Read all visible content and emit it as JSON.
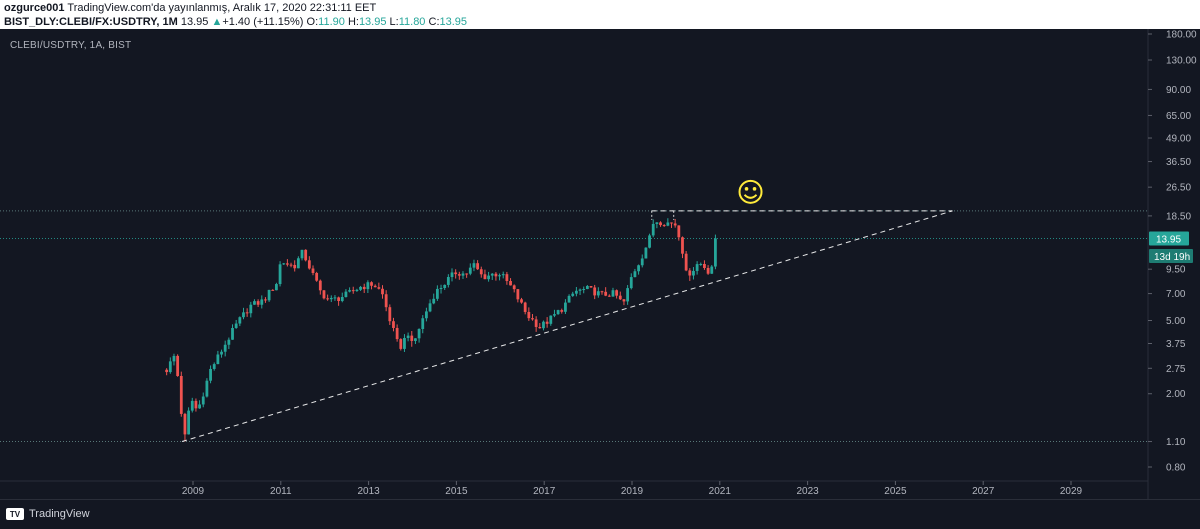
{
  "header": {
    "publisher": "ozgurce001",
    "published_text": "TradingView.com'da yayınlanmış, Aralık 17, 2020 22:31:11 EET",
    "symbol": "BIST_DLY:CLEBI/FX:USDTRY, 1M",
    "last": "13.95",
    "change_arrow": "▲",
    "change": "+1.40 (+11.15%)",
    "o_label": "O:",
    "o_value": "11.90",
    "h_label": "H:",
    "h_value": "13.95",
    "l_label": "L:",
    "l_value": "11.80",
    "c_label": "C:",
    "c_value": "13.95"
  },
  "chart_label": "CLEBI/USDTRY, 1A, BIST",
  "footer": {
    "brand": "TradingView"
  },
  "colors": {
    "up": "#26a69a",
    "down": "#ef5350",
    "background": "#131722",
    "trendline": "#ffffff",
    "smiley": "#ffeb3b"
  },
  "chart_data": {
    "type": "candlestick",
    "scale": "log",
    "ylim": [
      0.7,
      200
    ],
    "xlim": [
      2007.8,
      2030.2
    ],
    "y_ticks": [
      "180.00",
      "130.00",
      "90.00",
      "65.00",
      "49.00",
      "36.50",
      "26.50",
      "18.50",
      "13.95",
      "9.50",
      "7.00",
      "5.00",
      "3.75",
      "2.75",
      "2.00",
      "1.10",
      "0.80"
    ],
    "y_tick_values": [
      180,
      130,
      90,
      65,
      49,
      36.5,
      26.5,
      18.5,
      13.95,
      9.5,
      7,
      5,
      3.75,
      2.75,
      2,
      1.1,
      0.8
    ],
    "x_ticks": [
      "2009",
      "2011",
      "2013",
      "2015",
      "2017",
      "2019",
      "2021",
      "2023",
      "2025",
      "2027",
      "2029"
    ],
    "x_tick_values": [
      2009,
      2011,
      2013,
      2015,
      2017,
      2019,
      2021,
      2023,
      2025,
      2027,
      2029
    ],
    "last_price": {
      "label": "13.95",
      "value": 13.95
    },
    "countdown": {
      "label": "13d 19h",
      "value": 11.2
    },
    "horizontal_levels": [
      19.7,
      13.95,
      1.1
    ],
    "trendlines": [
      {
        "from": [
          2008.75,
          1.1
        ],
        "to": [
          2026.3,
          19.7
        ],
        "style": "dashed"
      },
      {
        "from": [
          2019.45,
          19.7
        ],
        "to": [
          2026.3,
          19.7
        ],
        "style": "dashed"
      }
    ],
    "annotation": {
      "glyph": "☺",
      "x": 2021.7,
      "y": 25
    },
    "anchors": [
      [
        2008.4,
        2.7
      ],
      [
        2008.6,
        3.3
      ],
      [
        2008.8,
        1.1
      ],
      [
        2008.95,
        1.9
      ],
      [
        2009.1,
        1.6
      ],
      [
        2009.4,
        2.7
      ],
      [
        2009.7,
        3.6
      ],
      [
        2010.0,
        4.8
      ],
      [
        2010.3,
        6.0
      ],
      [
        2010.6,
        6.4
      ],
      [
        2010.9,
        8.0
      ],
      [
        2011.0,
        10.5
      ],
      [
        2011.3,
        9.8
      ],
      [
        2011.5,
        11.8
      ],
      [
        2011.7,
        9.2
      ],
      [
        2011.9,
        7.2
      ],
      [
        2012.1,
        6.4
      ],
      [
        2012.3,
        6.6
      ],
      [
        2012.5,
        6.9
      ],
      [
        2012.8,
        7.6
      ],
      [
        2013.1,
        7.9
      ],
      [
        2013.3,
        7.1
      ],
      [
        2013.5,
        4.9
      ],
      [
        2013.7,
        3.5
      ],
      [
        2013.9,
        4.3
      ],
      [
        2014.0,
        3.6
      ],
      [
        2014.2,
        4.9
      ],
      [
        2014.5,
        7.0
      ],
      [
        2014.8,
        8.3
      ],
      [
        2015.0,
        9.2
      ],
      [
        2015.2,
        8.9
      ],
      [
        2015.4,
        10.0
      ],
      [
        2015.6,
        8.6
      ],
      [
        2015.8,
        8.9
      ],
      [
        2016.0,
        9.0
      ],
      [
        2016.3,
        7.3
      ],
      [
        2016.6,
        5.4
      ],
      [
        2016.9,
        4.6
      ],
      [
        2017.1,
        5.0
      ],
      [
        2017.4,
        5.8
      ],
      [
        2017.7,
        7.2
      ],
      [
        2018.0,
        7.4
      ],
      [
        2018.3,
        6.9
      ],
      [
        2018.6,
        7.0
      ],
      [
        2018.8,
        6.1
      ],
      [
        2019.0,
        8.8
      ],
      [
        2019.2,
        10.8
      ],
      [
        2019.4,
        14.0
      ],
      [
        2019.5,
        17.5
      ],
      [
        2019.8,
        17.0
      ],
      [
        2020.0,
        16.6
      ],
      [
        2020.15,
        12.0
      ],
      [
        2020.3,
        8.2
      ],
      [
        2020.45,
        10.5
      ],
      [
        2020.6,
        10.0
      ],
      [
        2020.75,
        9.0
      ],
      [
        2020.9,
        11.9
      ],
      [
        2020.96,
        13.95
      ]
    ]
  }
}
